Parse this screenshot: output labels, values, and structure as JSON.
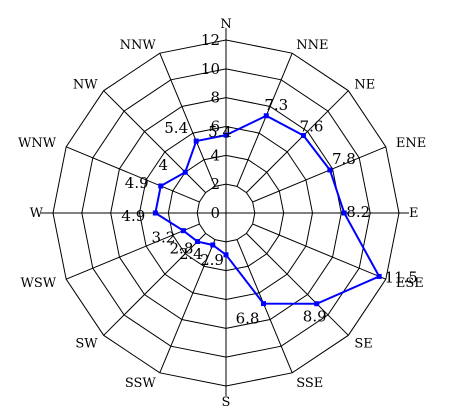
{
  "chart_data": {
    "type": "radar",
    "directions": [
      "N",
      "NNE",
      "NE",
      "ENE",
      "E",
      "ESE",
      "SE",
      "SSE",
      "S",
      "SSW",
      "SW",
      "WSW",
      "W",
      "WNW",
      "NW",
      "NNW"
    ],
    "radial_ticks": [
      "0",
      "2",
      "4",
      "6",
      "8",
      "10",
      "12"
    ],
    "rmax": 12,
    "series": [
      {
        "values": [
          5.4,
          7.3,
          7.6,
          7.8,
          8.2,
          11.5,
          8.9,
          6.8,
          2.9,
          2.4,
          2.8,
          3.2,
          4.9,
          4.9,
          4.0,
          5.4
        ],
        "labels": [
          "5.4",
          "7.3",
          "7.6",
          "7.8",
          "8.2",
          "11.5",
          "8.9",
          "6.8",
          "2.9",
          "2.4",
          "2.8",
          "3.2",
          "4.9",
          "4.9",
          "4",
          "5.4"
        ]
      }
    ],
    "color": "#0000ff",
    "grid": true
  }
}
